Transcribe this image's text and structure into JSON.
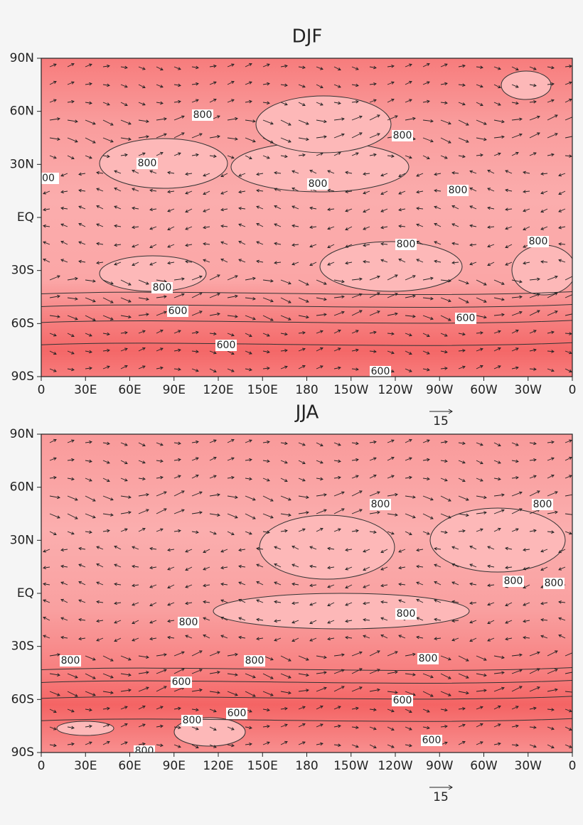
{
  "panels": [
    {
      "title": "DJF",
      "contour_labels": [
        "800",
        "800",
        "800",
        "800",
        "800",
        "800",
        "800",
        "800",
        "600",
        "600",
        "600",
        "600",
        "00"
      ],
      "reference_vector": "15"
    },
    {
      "title": "JJA",
      "contour_labels": [
        "800",
        "800",
        "800",
        "800",
        "800",
        "800",
        "800",
        "800",
        "800",
        "800",
        "800",
        "600",
        "600",
        "600",
        "600"
      ],
      "reference_vector": "15"
    }
  ],
  "lat_ticks": [
    {
      "value": 90,
      "label": "90N"
    },
    {
      "value": 60,
      "label": "60N"
    },
    {
      "value": 30,
      "label": "30N"
    },
    {
      "value": 0,
      "label": "EQ"
    },
    {
      "value": -30,
      "label": "30S"
    },
    {
      "value": -60,
      "label": "60S"
    },
    {
      "value": -90,
      "label": "90S"
    }
  ],
  "lon_ticks": [
    {
      "value": 0,
      "label": "0"
    },
    {
      "value": 30,
      "label": "30E"
    },
    {
      "value": 60,
      "label": "60E"
    },
    {
      "value": 90,
      "label": "90E"
    },
    {
      "value": 120,
      "label": "120E"
    },
    {
      "value": 150,
      "label": "150E"
    },
    {
      "value": 180,
      "label": "180"
    },
    {
      "value": 210,
      "label": "150W"
    },
    {
      "value": 240,
      "label": "120W"
    },
    {
      "value": 270,
      "label": "90W"
    },
    {
      "value": 300,
      "label": "60W"
    },
    {
      "value": 330,
      "label": "30W"
    },
    {
      "value": 360,
      "label": "0"
    }
  ]
}
